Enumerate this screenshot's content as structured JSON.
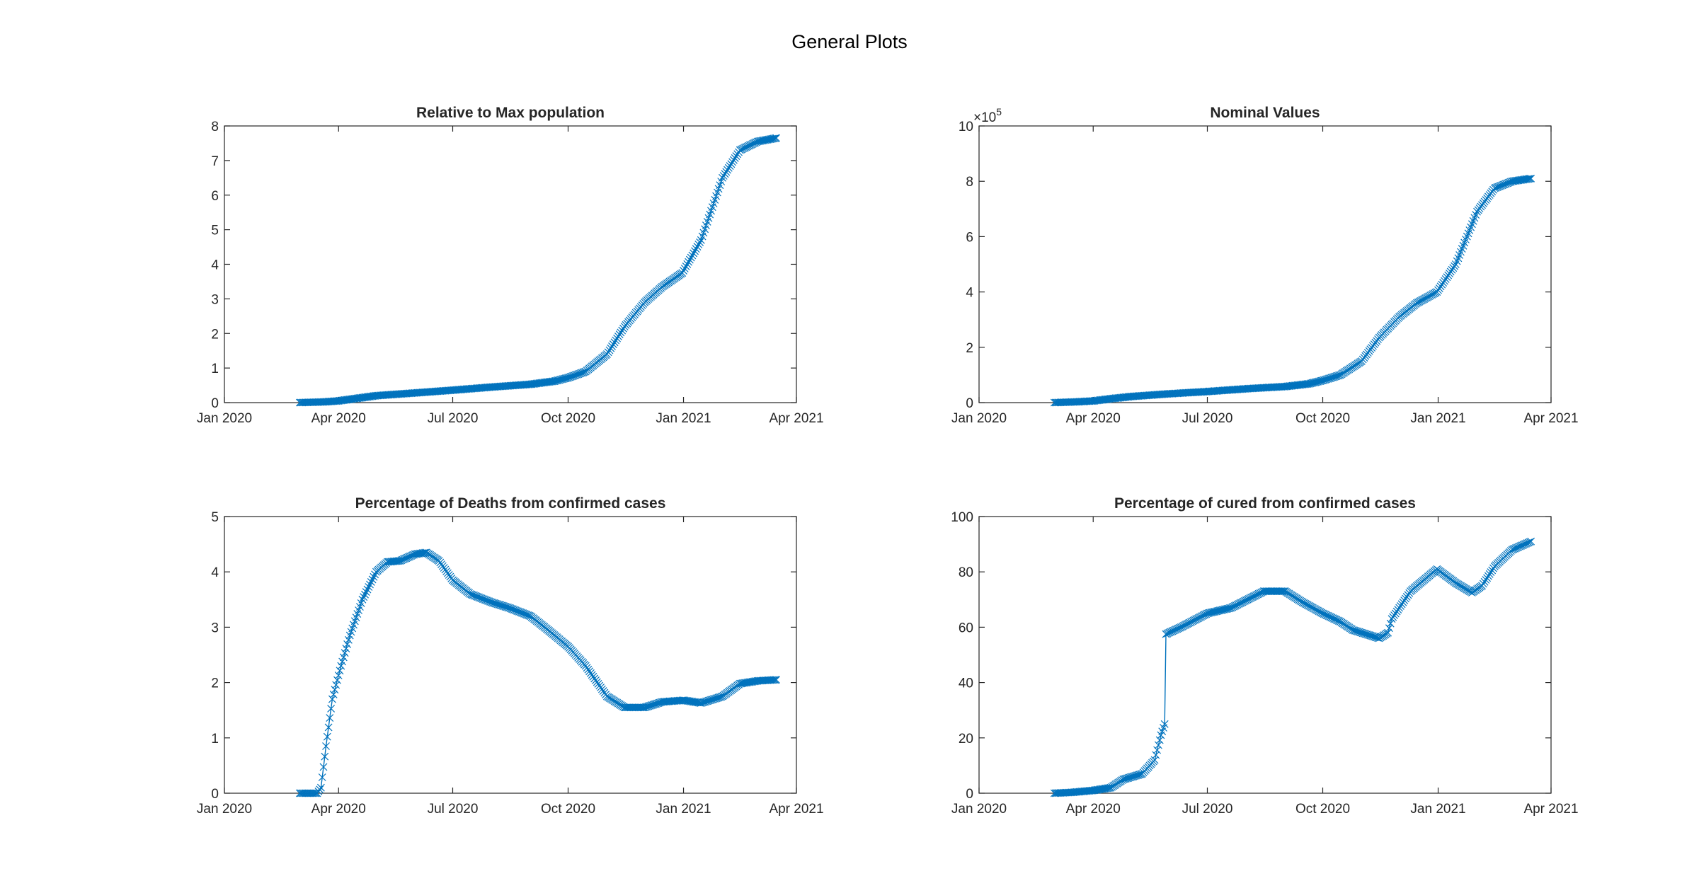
{
  "figure": {
    "title": "General Plots"
  },
  "chart_data": [
    {
      "type": "line",
      "title": "Relative to Max population",
      "xlabel": "",
      "ylabel": "",
      "x_tick_labels": [
        "Jan 2020",
        "Apr 2020",
        "Jul 2020",
        "Oct 2020",
        "Jan 2021",
        "Apr 2021"
      ],
      "x_tick_dates": [
        "2020-01-01",
        "2020-04-01",
        "2020-07-01",
        "2020-10-01",
        "2021-01-01",
        "2021-04-01"
      ],
      "xlim": [
        "2020-01-01",
        "2021-04-01"
      ],
      "ylim": [
        0,
        8
      ],
      "y_ticks": [
        0,
        1,
        2,
        3,
        4,
        5,
        6,
        7,
        8
      ],
      "marker": "x",
      "color": "#0072BD",
      "x_start": "2020-03-01",
      "x_end": "2021-03-16",
      "keypoints": [
        [
          "2020-03-01",
          0.0
        ],
        [
          "2020-03-20",
          0.02
        ],
        [
          "2020-04-01",
          0.05
        ],
        [
          "2020-04-15",
          0.12
        ],
        [
          "2020-05-01",
          0.2
        ],
        [
          "2020-06-01",
          0.28
        ],
        [
          "2020-07-01",
          0.36
        ],
        [
          "2020-08-01",
          0.45
        ],
        [
          "2020-09-01",
          0.53
        ],
        [
          "2020-09-20",
          0.62
        ],
        [
          "2020-10-01",
          0.72
        ],
        [
          "2020-10-15",
          0.9
        ],
        [
          "2020-11-01",
          1.4
        ],
        [
          "2020-11-15",
          2.2
        ],
        [
          "2020-12-01",
          2.9
        ],
        [
          "2020-12-15",
          3.35
        ],
        [
          "2020-12-31",
          3.75
        ],
        [
          "2021-01-15",
          4.7
        ],
        [
          "2021-02-01",
          6.5
        ],
        [
          "2021-02-15",
          7.3
        ],
        [
          "2021-03-01",
          7.55
        ],
        [
          "2021-03-16",
          7.65
        ]
      ]
    },
    {
      "type": "line",
      "title": "Nominal Values",
      "xlabel": "",
      "ylabel": "",
      "x_tick_labels": [
        "Jan 2020",
        "Apr 2020",
        "Jul 2020",
        "Oct 2020",
        "Jan 2021",
        "Apr 2021"
      ],
      "x_tick_dates": [
        "2020-01-01",
        "2020-04-01",
        "2020-07-01",
        "2020-10-01",
        "2021-01-01",
        "2021-04-01"
      ],
      "xlim": [
        "2020-01-01",
        "2021-04-01"
      ],
      "ylim": [
        0,
        1000000
      ],
      "y_ticks": [
        0,
        200000,
        400000,
        600000,
        800000,
        1000000
      ],
      "y_tick_labels": [
        "0",
        "2",
        "4",
        "6",
        "8",
        "10"
      ],
      "y_exponent_base": "×10",
      "y_exponent": "5",
      "marker": "x",
      "color": "#0072BD",
      "x_start": "2020-03-01",
      "x_end": "2021-03-16",
      "keypoints": [
        [
          "2020-03-01",
          0
        ],
        [
          "2020-03-20",
          3000
        ],
        [
          "2020-04-01",
          6000
        ],
        [
          "2020-04-15",
          14000
        ],
        [
          "2020-05-01",
          22000
        ],
        [
          "2020-06-01",
          32000
        ],
        [
          "2020-07-01",
          40000
        ],
        [
          "2020-08-01",
          50000
        ],
        [
          "2020-09-01",
          58000
        ],
        [
          "2020-09-20",
          68000
        ],
        [
          "2020-10-01",
          80000
        ],
        [
          "2020-10-15",
          100000
        ],
        [
          "2020-11-01",
          150000
        ],
        [
          "2020-11-15",
          235000
        ],
        [
          "2020-12-01",
          310000
        ],
        [
          "2020-12-15",
          360000
        ],
        [
          "2020-12-31",
          400000
        ],
        [
          "2021-01-15",
          500000
        ],
        [
          "2021-02-01",
          690000
        ],
        [
          "2021-02-15",
          775000
        ],
        [
          "2021-03-01",
          800000
        ],
        [
          "2021-03-16",
          810000
        ]
      ]
    },
    {
      "type": "line",
      "title": "Percentage of Deaths from confirmed cases",
      "xlabel": "",
      "ylabel": "",
      "x_tick_labels": [
        "Jan 2020",
        "Apr 2020",
        "Jul 2020",
        "Oct 2020",
        "Jan 2021",
        "Apr 2021"
      ],
      "x_tick_dates": [
        "2020-01-01",
        "2020-04-01",
        "2020-07-01",
        "2020-10-01",
        "2021-01-01",
        "2021-04-01"
      ],
      "xlim": [
        "2020-01-01",
        "2021-04-01"
      ],
      "ylim": [
        0,
        5
      ],
      "y_ticks": [
        0,
        1,
        2,
        3,
        4,
        5
      ],
      "marker": "x",
      "color": "#0072BD",
      "x_start": "2020-03-01",
      "x_end": "2021-03-16",
      "keypoints": [
        [
          "2020-03-01",
          0.0
        ],
        [
          "2020-03-15",
          0.0
        ],
        [
          "2020-03-18",
          0.1
        ],
        [
          "2020-03-22",
          0.85
        ],
        [
          "2020-03-27",
          1.7
        ],
        [
          "2020-04-03",
          2.3
        ],
        [
          "2020-04-10",
          2.85
        ],
        [
          "2020-04-20",
          3.5
        ],
        [
          "2020-05-01",
          4.0
        ],
        [
          "2020-05-10",
          4.18
        ],
        [
          "2020-05-20",
          4.2
        ],
        [
          "2020-06-01",
          4.32
        ],
        [
          "2020-06-10",
          4.35
        ],
        [
          "2020-06-20",
          4.2
        ],
        [
          "2020-07-01",
          3.85
        ],
        [
          "2020-07-15",
          3.6
        ],
        [
          "2020-08-01",
          3.45
        ],
        [
          "2020-08-15",
          3.35
        ],
        [
          "2020-09-01",
          3.2
        ],
        [
          "2020-09-15",
          2.95
        ],
        [
          "2020-10-01",
          2.65
        ],
        [
          "2020-10-15",
          2.3
        ],
        [
          "2020-11-01",
          1.75
        ],
        [
          "2020-11-15",
          1.55
        ],
        [
          "2020-12-01",
          1.55
        ],
        [
          "2020-12-15",
          1.65
        ],
        [
          "2021-01-01",
          1.68
        ],
        [
          "2021-01-15",
          1.63
        ],
        [
          "2021-02-01",
          1.75
        ],
        [
          "2021-02-15",
          1.98
        ],
        [
          "2021-03-01",
          2.03
        ],
        [
          "2021-03-16",
          2.05
        ]
      ]
    },
    {
      "type": "line",
      "title": "Percentage of cured from confirmed cases",
      "xlabel": "",
      "ylabel": "",
      "x_tick_labels": [
        "Jan 2020",
        "Apr 2020",
        "Jul 2020",
        "Oct 2020",
        "Jan 2021",
        "Apr 2021"
      ],
      "x_tick_dates": [
        "2020-01-01",
        "2020-04-01",
        "2020-07-01",
        "2020-10-01",
        "2021-01-01",
        "2021-04-01"
      ],
      "xlim": [
        "2020-01-01",
        "2021-04-01"
      ],
      "ylim": [
        0,
        100
      ],
      "y_ticks": [
        0,
        20,
        40,
        60,
        80,
        100
      ],
      "marker": "x",
      "color": "#0072BD",
      "x_start": "2020-03-01",
      "x_end": "2021-03-16",
      "keypoints": [
        [
          "2020-03-01",
          0
        ],
        [
          "2020-03-15",
          0.3
        ],
        [
          "2020-04-01",
          1
        ],
        [
          "2020-04-15",
          2
        ],
        [
          "2020-04-25",
          5
        ],
        [
          "2020-05-10",
          7
        ],
        [
          "2020-05-20",
          12
        ],
        [
          "2020-05-25",
          21
        ],
        [
          "2020-05-28",
          25
        ],
        [
          "2020-05-29",
          57.5
        ],
        [
          "2020-06-10",
          60
        ],
        [
          "2020-07-01",
          65
        ],
        [
          "2020-07-20",
          67
        ],
        [
          "2020-08-15",
          73
        ],
        [
          "2020-09-01",
          73
        ],
        [
          "2020-09-15",
          69
        ],
        [
          "2020-10-01",
          65
        ],
        [
          "2020-10-15",
          62
        ],
        [
          "2020-10-25",
          59
        ],
        [
          "2020-11-15",
          56
        ],
        [
          "2020-11-22",
          58
        ],
        [
          "2020-11-25",
          63
        ],
        [
          "2020-12-10",
          73
        ],
        [
          "2020-12-31",
          81
        ],
        [
          "2021-01-15",
          76
        ],
        [
          "2021-01-28",
          72.5
        ],
        [
          "2021-02-05",
          75
        ],
        [
          "2021-02-15",
          82
        ],
        [
          "2021-03-01",
          88
        ],
        [
          "2021-03-16",
          91
        ]
      ]
    }
  ]
}
